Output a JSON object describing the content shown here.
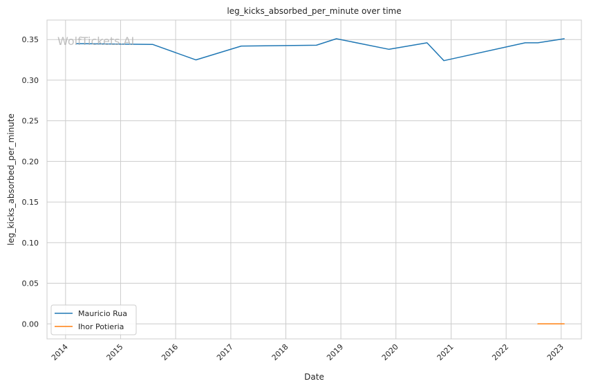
{
  "chart_data": {
    "type": "line",
    "title": "leg_kicks_absorbed_per_minute over time",
    "xlabel": "Date",
    "ylabel": "leg_kicks_absorbed_per_minute",
    "watermark": "WolfTickets.AI",
    "xlim": [
      "2013-08-31",
      "2023-05-15"
    ],
    "ylim": [
      -0.0185,
      0.374
    ],
    "x_ticks": [
      "2014",
      "2015",
      "2016",
      "2017",
      "2018",
      "2019",
      "2020",
      "2021",
      "2022",
      "2023"
    ],
    "y_ticks": [
      "0.00",
      "0.05",
      "0.10",
      "0.15",
      "0.20",
      "0.25",
      "0.30",
      "0.35"
    ],
    "grid": true,
    "legend_position": "lower-left",
    "series": [
      {
        "name": "Mauricio Rua",
        "color": "#1f77b4",
        "points": [
          {
            "x": "2014-03-15",
            "y": 0.345
          },
          {
            "x": "2015-08-01",
            "y": 0.344
          },
          {
            "x": "2016-05-14",
            "y": 0.325
          },
          {
            "x": "2017-03-11",
            "y": 0.342
          },
          {
            "x": "2018-07-22",
            "y": 0.343
          },
          {
            "x": "2018-12-02",
            "y": 0.351
          },
          {
            "x": "2019-11-16",
            "y": 0.338
          },
          {
            "x": "2020-07-25",
            "y": 0.346
          },
          {
            "x": "2020-11-14",
            "y": 0.324
          },
          {
            "x": "2022-05-07",
            "y": 0.346
          },
          {
            "x": "2022-07-30",
            "y": 0.346
          },
          {
            "x": "2023-01-21",
            "y": 0.351
          }
        ]
      },
      {
        "name": "Ihor Potieria",
        "color": "#ff7f0e",
        "points": [
          {
            "x": "2022-07-30",
            "y": 0.0
          },
          {
            "x": "2023-01-21",
            "y": 0.0
          }
        ]
      }
    ]
  }
}
